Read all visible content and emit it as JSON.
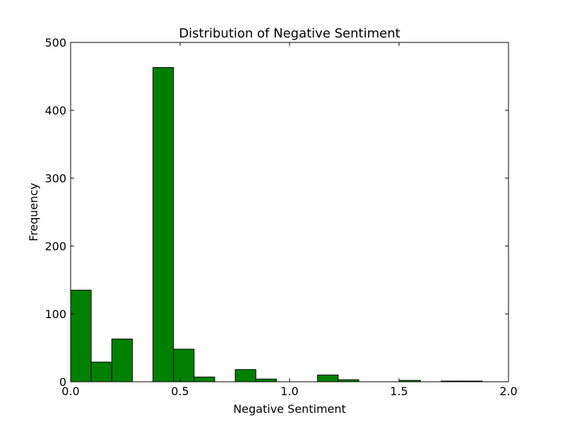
{
  "chart_data": {
    "type": "bar",
    "title": "Distribution of Negative Sentiment",
    "xlabel": "Negative Sentiment",
    "ylabel": "Frequency",
    "xlim": [
      0.0,
      2.0
    ],
    "ylim": [
      0,
      500
    ],
    "x_ticks": [
      "0.0",
      "0.5",
      "1.0",
      "1.5",
      "2.0"
    ],
    "y_ticks": [
      "0",
      "100",
      "200",
      "300",
      "400",
      "500"
    ],
    "grid": false,
    "bar_color": "#008000",
    "bins": [
      {
        "x0": 0.0,
        "x1": 0.094,
        "value": 135
      },
      {
        "x0": 0.094,
        "x1": 0.188,
        "value": 29
      },
      {
        "x0": 0.188,
        "x1": 0.282,
        "value": 63
      },
      {
        "x0": 0.282,
        "x1": 0.376,
        "value": 0
      },
      {
        "x0": 0.376,
        "x1": 0.47,
        "value": 463
      },
      {
        "x0": 0.47,
        "x1": 0.564,
        "value": 48
      },
      {
        "x0": 0.564,
        "x1": 0.658,
        "value": 7
      },
      {
        "x0": 0.658,
        "x1": 0.752,
        "value": 0
      },
      {
        "x0": 0.752,
        "x1": 0.846,
        "value": 18
      },
      {
        "x0": 0.846,
        "x1": 0.94,
        "value": 4
      },
      {
        "x0": 0.94,
        "x1": 1.034,
        "value": 0
      },
      {
        "x0": 1.034,
        "x1": 1.128,
        "value": 0
      },
      {
        "x0": 1.128,
        "x1": 1.222,
        "value": 10
      },
      {
        "x0": 1.222,
        "x1": 1.316,
        "value": 3
      },
      {
        "x0": 1.316,
        "x1": 1.41,
        "value": 0
      },
      {
        "x0": 1.41,
        "x1": 1.504,
        "value": 0
      },
      {
        "x0": 1.504,
        "x1": 1.598,
        "value": 2
      },
      {
        "x0": 1.598,
        "x1": 1.692,
        "value": 0
      },
      {
        "x0": 1.692,
        "x1": 1.786,
        "value": 1
      },
      {
        "x0": 1.786,
        "x1": 1.88,
        "value": 1
      }
    ]
  }
}
